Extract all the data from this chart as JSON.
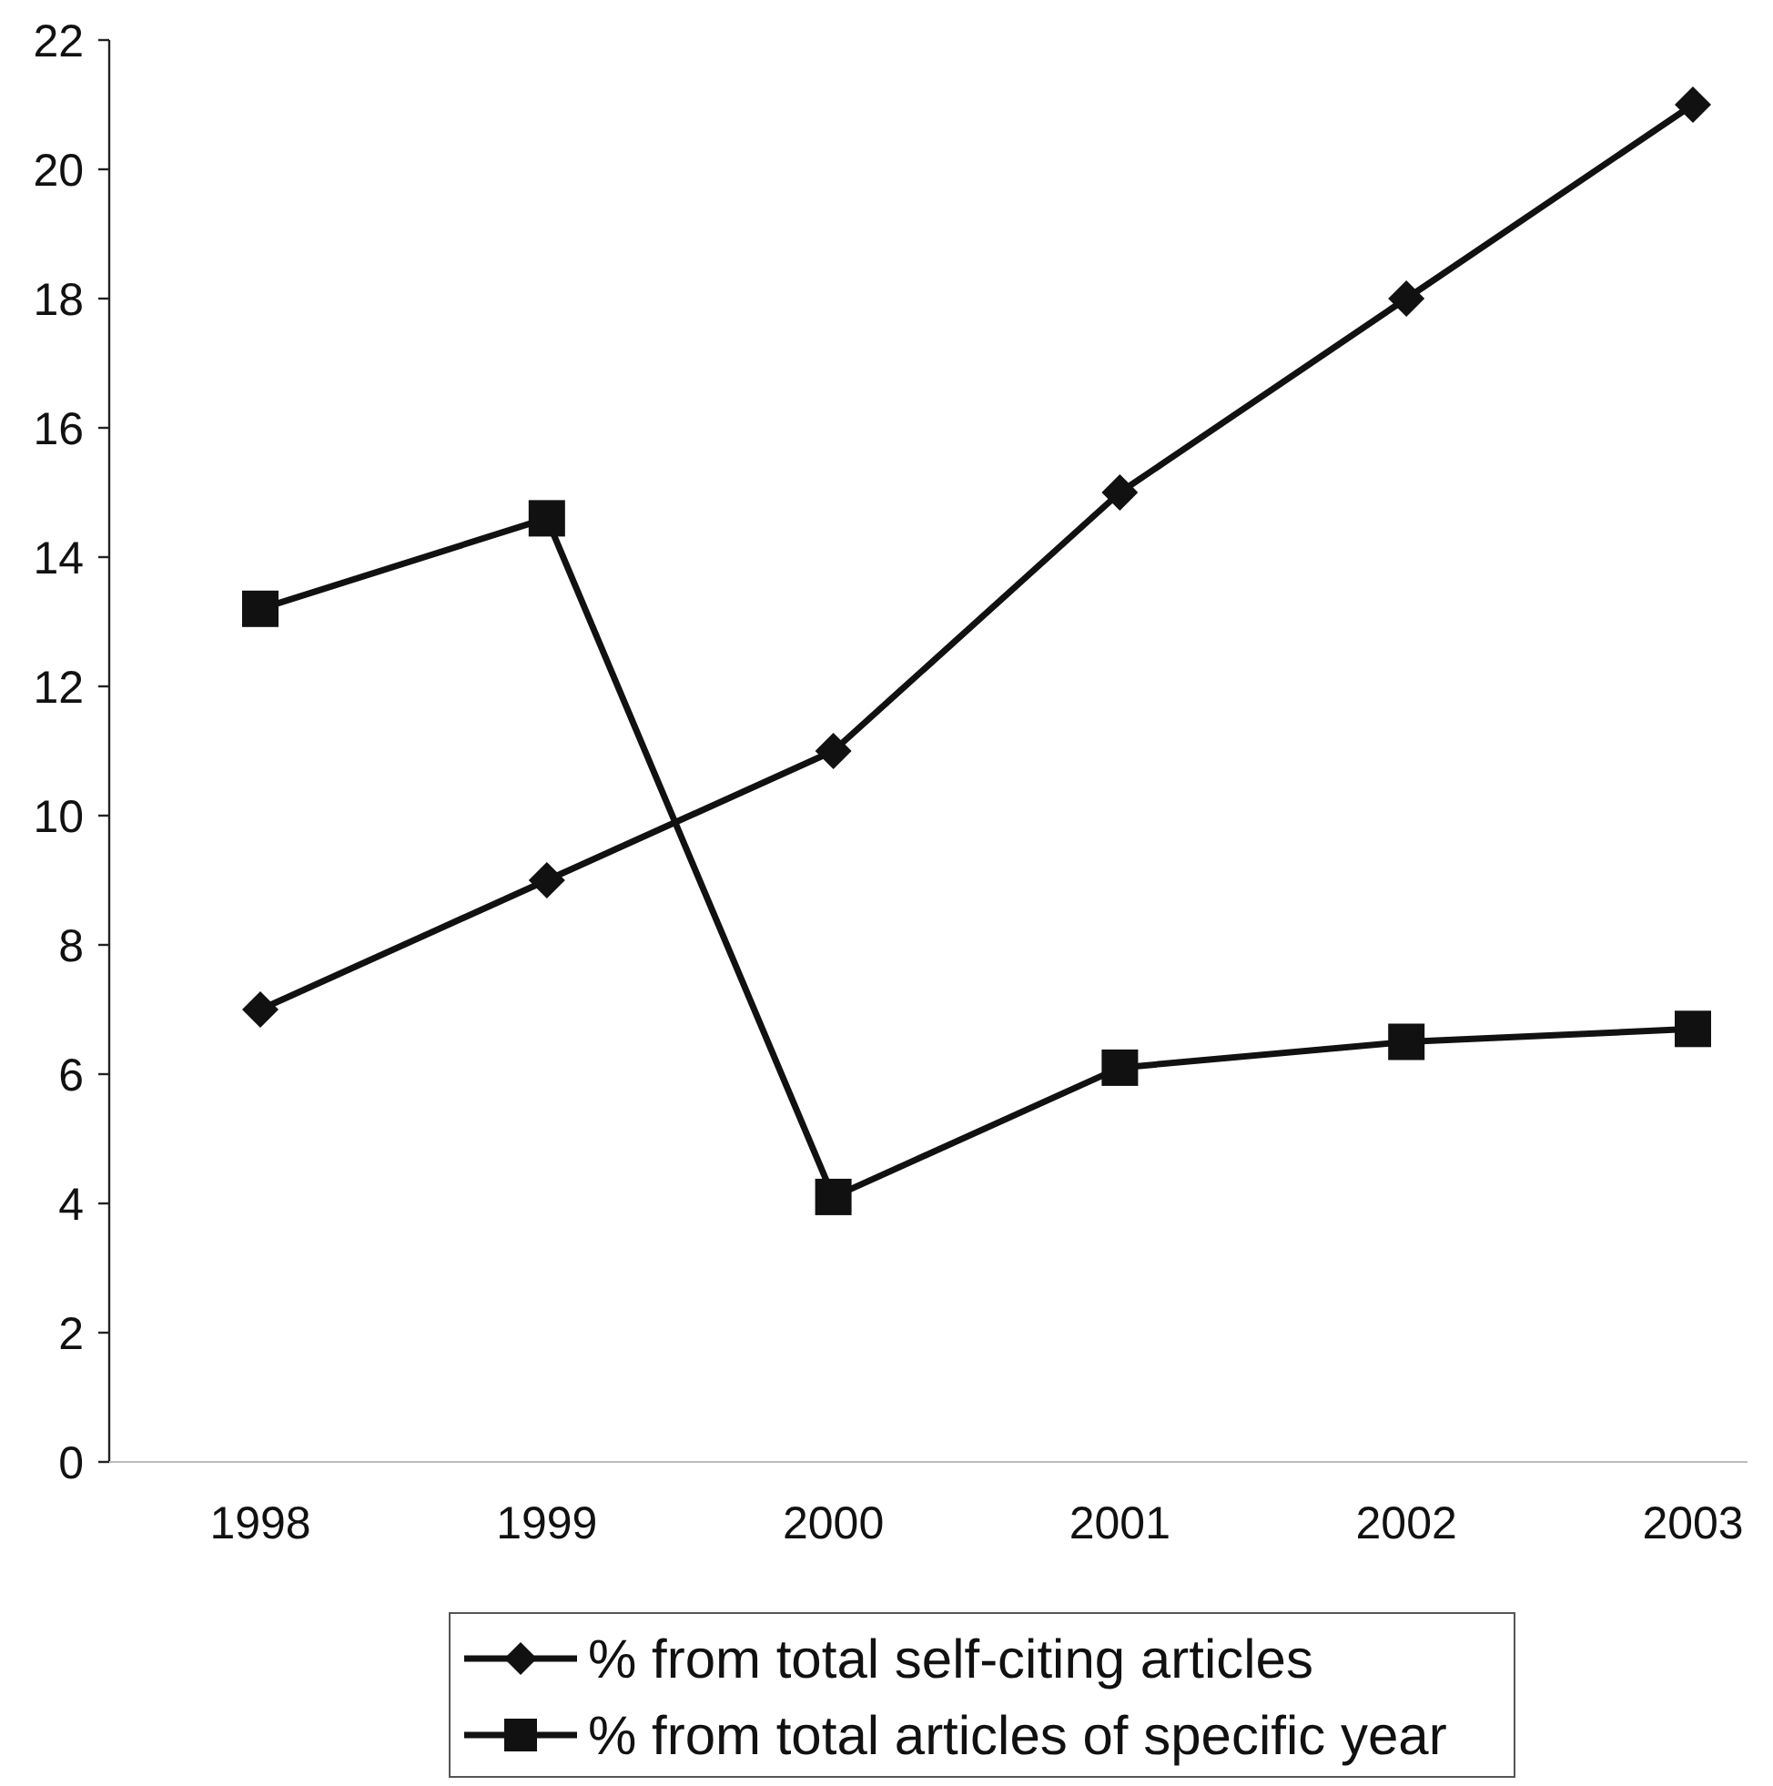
{
  "chart_data": {
    "type": "line",
    "categories": [
      "1998",
      "1999",
      "2000",
      "2001",
      "2002",
      "2003"
    ],
    "series": [
      {
        "name": "% from total self-citing articles",
        "color": "#111111",
        "marker": "diamond",
        "values": [
          7,
          9,
          11,
          15,
          18,
          21
        ]
      },
      {
        "name": "% from total articles of specific year",
        "color": "#111111",
        "marker": "square",
        "values": [
          13.2,
          14.6,
          4.1,
          6.1,
          6.5,
          6.7
        ]
      }
    ],
    "ylim": [
      0,
      22
    ],
    "yticks": [
      0,
      2,
      4,
      6,
      8,
      10,
      12,
      14,
      16,
      18,
      20,
      22
    ],
    "grid": false,
    "legend": "bottom",
    "line_style": "solid"
  }
}
